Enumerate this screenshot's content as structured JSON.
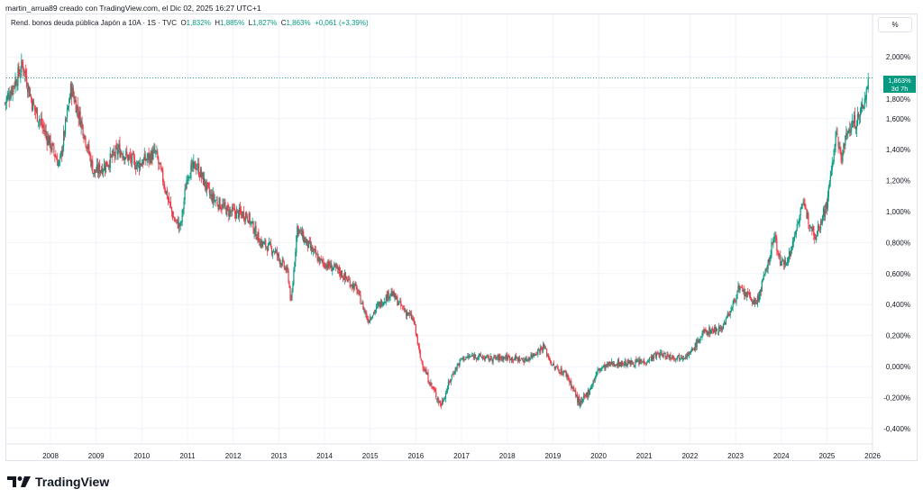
{
  "header": {
    "credit": "martin_arrua89 creado con TradingView.com, el Dic 02, 2025 16:27 UTC+1"
  },
  "legend": {
    "symbol": "Rend. bonos deuda pública Japón a 10A · 1S · TVC",
    "o_label": "O",
    "o": "1,832%",
    "h_label": "H",
    "h": "1,885%",
    "l_label": "L",
    "l": "1,827%",
    "c_label": "C",
    "c": "1,863%",
    "change": "+0,061 (+3,39%)"
  },
  "axis": {
    "unit_button": "%"
  },
  "price_tag": {
    "value": "1,863%",
    "countdown": "3d 7h"
  },
  "logo": {
    "text": "TradingView"
  },
  "colors": {
    "up": "#089981",
    "down": "#f23645",
    "grid": "#f0f3fa",
    "last_price": "#089981"
  },
  "chart_data": {
    "type": "candlestick",
    "interval": "1W",
    "ylim": [
      -0.4,
      2.0
    ],
    "yticks": [
      "2,000%",
      "1,800%",
      "1,600%",
      "1,400%",
      "1,200%",
      "1,000%",
      "0,800%",
      "0,600%",
      "0,400%",
      "0,200%",
      "0,000%",
      "-0,200%",
      "-0,400%"
    ],
    "ytick_values": [
      2.0,
      1.8,
      1.6,
      1.4,
      1.2,
      1.0,
      0.8,
      0.6,
      0.4,
      0.2,
      0.0,
      -0.2,
      -0.4
    ],
    "xticks": [
      "2008",
      "2009",
      "2010",
      "2011",
      "2012",
      "2013",
      "2014",
      "2015",
      "2016",
      "2017",
      "2018",
      "2019",
      "2020",
      "2021",
      "2022",
      "2023",
      "2024",
      "2025",
      "2026"
    ],
    "last_price": 1.863,
    "approx_close_path": [
      [
        2007.0,
        1.7
      ],
      [
        2007.4,
        1.95
      ],
      [
        2007.6,
        1.7
      ],
      [
        2007.9,
        1.5
      ],
      [
        2008.2,
        1.3
      ],
      [
        2008.45,
        1.8
      ],
      [
        2008.7,
        1.55
      ],
      [
        2008.95,
        1.25
      ],
      [
        2009.2,
        1.3
      ],
      [
        2009.5,
        1.4
      ],
      [
        2009.9,
        1.3
      ],
      [
        2010.3,
        1.38
      ],
      [
        2010.7,
        0.95
      ],
      [
        2010.85,
        0.9
      ],
      [
        2011.0,
        1.25
      ],
      [
        2011.2,
        1.3
      ],
      [
        2011.5,
        1.1
      ],
      [
        2011.9,
        1.0
      ],
      [
        2012.3,
        0.98
      ],
      [
        2012.6,
        0.8
      ],
      [
        2012.9,
        0.75
      ],
      [
        2013.2,
        0.6
      ],
      [
        2013.27,
        0.4
      ],
      [
        2013.4,
        0.9
      ],
      [
        2013.6,
        0.8
      ],
      [
        2013.9,
        0.68
      ],
      [
        2014.3,
        0.62
      ],
      [
        2014.7,
        0.5
      ],
      [
        2014.95,
        0.3
      ],
      [
        2015.2,
        0.4
      ],
      [
        2015.45,
        0.48
      ],
      [
        2015.7,
        0.38
      ],
      [
        2015.95,
        0.3
      ],
      [
        2016.1,
        0.05
      ],
      [
        2016.3,
        -0.1
      ],
      [
        2016.55,
        -0.25
      ],
      [
        2016.8,
        -0.05
      ],
      [
        2017.0,
        0.05
      ],
      [
        2017.3,
        0.07
      ],
      [
        2017.6,
        0.05
      ],
      [
        2018.0,
        0.06
      ],
      [
        2018.4,
        0.04
      ],
      [
        2018.8,
        0.13
      ],
      [
        2019.0,
        0.0
      ],
      [
        2019.3,
        -0.05
      ],
      [
        2019.6,
        -0.25
      ],
      [
        2019.8,
        -0.15
      ],
      [
        2020.0,
        -0.02
      ],
      [
        2020.3,
        0.02
      ],
      [
        2020.6,
        0.02
      ],
      [
        2021.0,
        0.03
      ],
      [
        2021.3,
        0.08
      ],
      [
        2021.7,
        0.06
      ],
      [
        2022.0,
        0.08
      ],
      [
        2022.3,
        0.22
      ],
      [
        2022.7,
        0.25
      ],
      [
        2022.95,
        0.4
      ],
      [
        2023.05,
        0.5
      ],
      [
        2023.3,
        0.45
      ],
      [
        2023.45,
        0.4
      ],
      [
        2023.7,
        0.65
      ],
      [
        2023.85,
        0.85
      ],
      [
        2024.0,
        0.65
      ],
      [
        2024.2,
        0.73
      ],
      [
        2024.45,
        1.05
      ],
      [
        2024.6,
        0.95
      ],
      [
        2024.75,
        0.85
      ],
      [
        2025.0,
        1.05
      ],
      [
        2025.2,
        1.5
      ],
      [
        2025.3,
        1.35
      ],
      [
        2025.5,
        1.55
      ],
      [
        2025.7,
        1.6
      ],
      [
        2025.85,
        1.75
      ],
      [
        2025.92,
        1.863
      ]
    ]
  }
}
